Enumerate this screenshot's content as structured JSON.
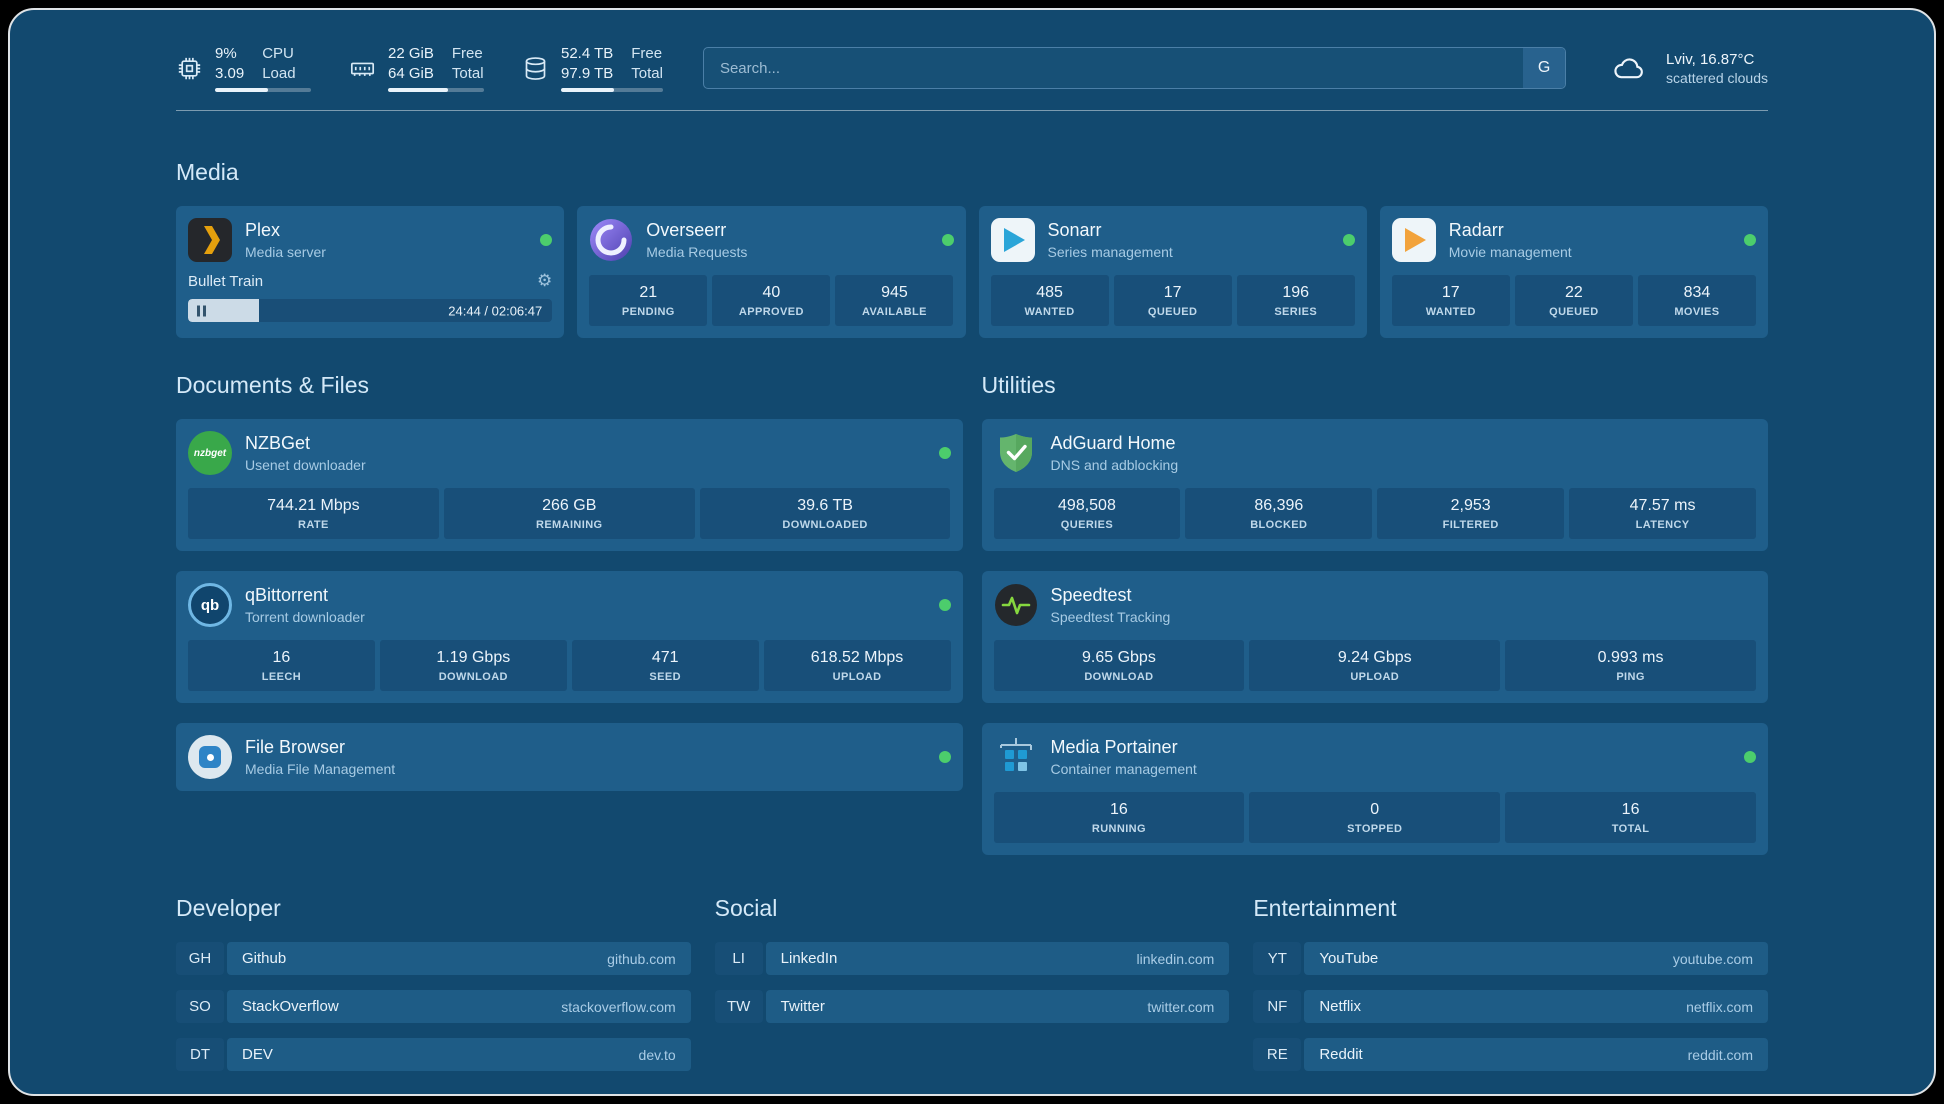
{
  "topbar": {
    "cpu": {
      "usage": "9%",
      "load": "3.09",
      "label_top": "CPU",
      "label_bottom": "Load",
      "bar_pct": 55
    },
    "memory": {
      "free": "22 GiB",
      "total": "64 GiB",
      "label_top": "Free",
      "label_bottom": "Total",
      "bar_pct": 63
    },
    "disk": {
      "free": "52.4 TB",
      "total": "97.9 TB",
      "label_top": "Free",
      "label_bottom": "Total",
      "bar_pct": 52
    },
    "search": {
      "placeholder": "Search...",
      "provider_label": "G"
    },
    "weather": {
      "location": "Lviv, 16.87°C",
      "condition": "scattered clouds"
    }
  },
  "sections": {
    "media": "Media",
    "documents": "Documents & Files",
    "utilities": "Utilities"
  },
  "icons": {
    "gear": "⚙"
  },
  "services": {
    "plex": {
      "name": "Plex",
      "desc": "Media server",
      "online": true,
      "now_playing": "Bullet Train",
      "time": "24:44 / 02:06:47",
      "progress_pct": 19.5
    },
    "overseerr": {
      "name": "Overseerr",
      "desc": "Media Requests",
      "online": true,
      "stats": [
        {
          "value": "21",
          "label": "PENDING"
        },
        {
          "value": "40",
          "label": "APPROVED"
        },
        {
          "value": "945",
          "label": "AVAILABLE"
        }
      ]
    },
    "sonarr": {
      "name": "Sonarr",
      "desc": "Series management",
      "online": true,
      "stats": [
        {
          "value": "485",
          "label": "WANTED"
        },
        {
          "value": "17",
          "label": "QUEUED"
        },
        {
          "value": "196",
          "label": "SERIES"
        }
      ]
    },
    "radarr": {
      "name": "Radarr",
      "desc": "Movie management",
      "online": true,
      "stats": [
        {
          "value": "17",
          "label": "WANTED"
        },
        {
          "value": "22",
          "label": "QUEUED"
        },
        {
          "value": "834",
          "label": "MOVIES"
        }
      ]
    },
    "nzbget": {
      "name": "NZBGet",
      "desc": "Usenet downloader",
      "online": true,
      "icon_label": "nzbget",
      "stats": [
        {
          "value": "744.21 Mbps",
          "label": "RATE"
        },
        {
          "value": "266 GB",
          "label": "REMAINING"
        },
        {
          "value": "39.6 TB",
          "label": "DOWNLOADED"
        }
      ]
    },
    "qbittorrent": {
      "name": "qBittorrent",
      "desc": "Torrent downloader",
      "online": true,
      "icon_label": "qb",
      "stats": [
        {
          "value": "16",
          "label": "LEECH"
        },
        {
          "value": "1.19 Gbps",
          "label": "DOWNLOAD"
        },
        {
          "value": "471",
          "label": "SEED"
        },
        {
          "value": "618.52 Mbps",
          "label": "UPLOAD"
        }
      ]
    },
    "filebrowser": {
      "name": "File Browser",
      "desc": "Media File Management",
      "online": true
    },
    "adguard": {
      "name": "AdGuard Home",
      "desc": "DNS and adblocking",
      "stats": [
        {
          "value": "498,508",
          "label": "QUERIES"
        },
        {
          "value": "86,396",
          "label": "BLOCKED"
        },
        {
          "value": "2,953",
          "label": "FILTERED"
        },
        {
          "value": "47.57 ms",
          "label": "LATENCY"
        }
      ]
    },
    "speedtest": {
      "name": "Speedtest",
      "desc": "Speedtest Tracking",
      "stats": [
        {
          "value": "9.65 Gbps",
          "label": "DOWNLOAD"
        },
        {
          "value": "9.24 Gbps",
          "label": "UPLOAD"
        },
        {
          "value": "0.993 ms",
          "label": "PING"
        }
      ]
    },
    "portainer": {
      "name": "Media Portainer",
      "desc": "Container management",
      "online": true,
      "stats": [
        {
          "value": "16",
          "label": "RUNNING"
        },
        {
          "value": "0",
          "label": "STOPPED"
        },
        {
          "value": "16",
          "label": "TOTAL"
        }
      ]
    }
  },
  "bookmark_groups": [
    {
      "title": "Developer",
      "items": [
        {
          "abbr": "GH",
          "name": "Github",
          "domain": "github.com"
        },
        {
          "abbr": "SO",
          "name": "StackOverflow",
          "domain": "stackoverflow.com"
        },
        {
          "abbr": "DT",
          "name": "DEV",
          "domain": "dev.to"
        }
      ]
    },
    {
      "title": "Social",
      "items": [
        {
          "abbr": "LI",
          "name": "LinkedIn",
          "domain": "linkedin.com"
        },
        {
          "abbr": "TW",
          "name": "Twitter",
          "domain": "twitter.com"
        }
      ]
    },
    {
      "title": "Entertainment",
      "items": [
        {
          "abbr": "YT",
          "name": "YouTube",
          "domain": "youtube.com"
        },
        {
          "abbr": "NF",
          "name": "Netflix",
          "domain": "netflix.com"
        },
        {
          "abbr": "RE",
          "name": "Reddit",
          "domain": "reddit.com"
        }
      ]
    }
  ],
  "colors": {
    "background": "#12496f",
    "card": "#1f5e8a",
    "panel": "#184f79",
    "status_online": "#4ccd6c"
  }
}
